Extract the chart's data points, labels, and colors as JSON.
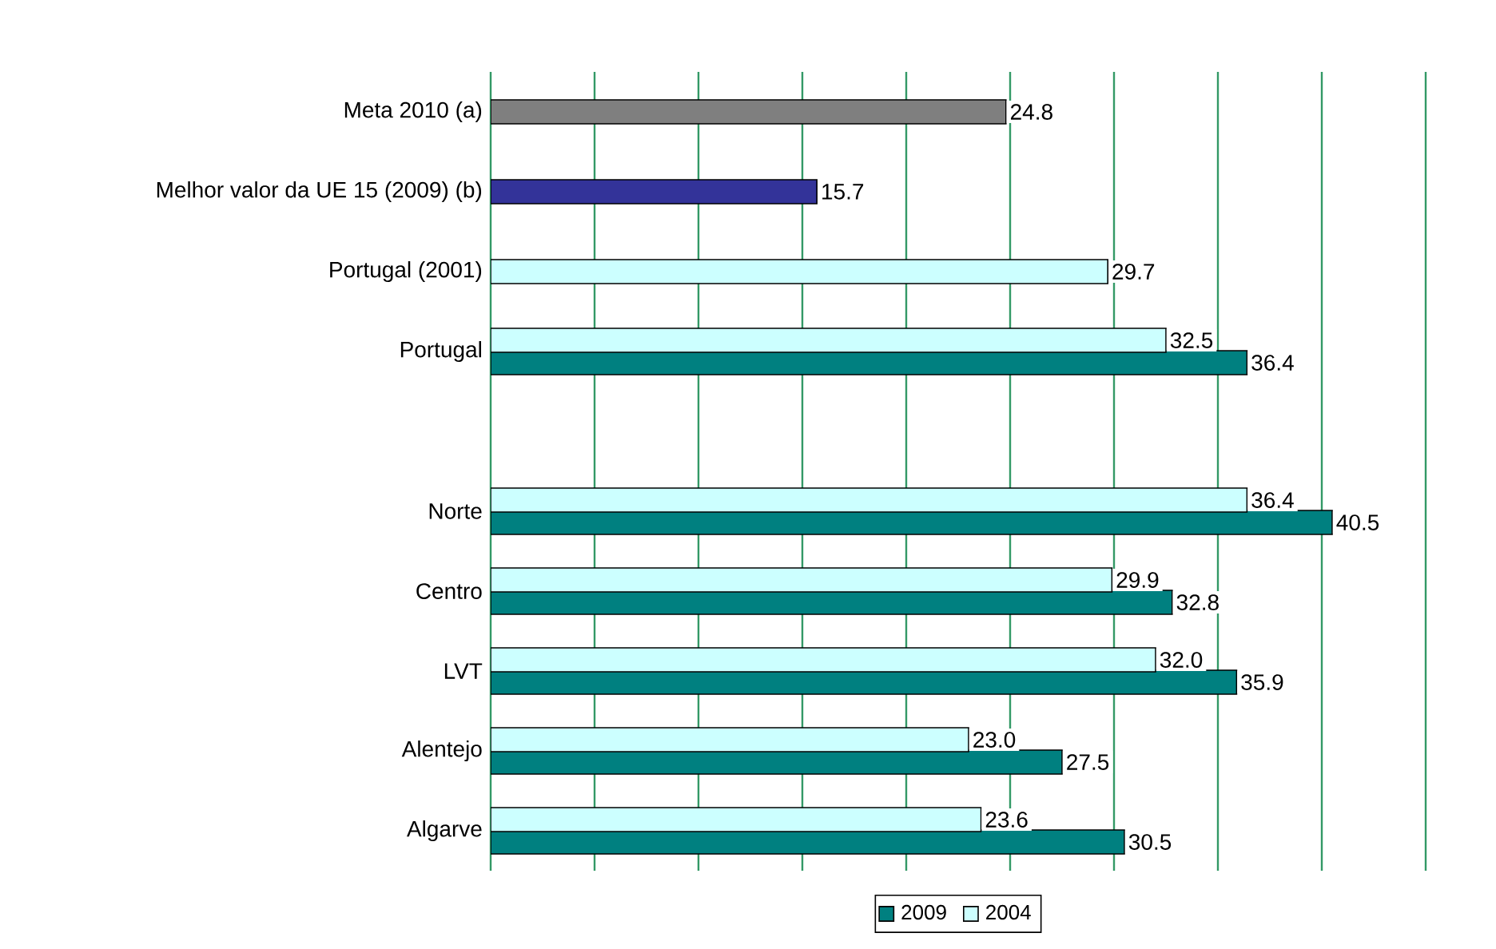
{
  "chart_data": {
    "type": "bar",
    "orientation": "horizontal",
    "categories": [
      "Meta 2010 (a)",
      "Melhor valor da UE 15 (2009) (b)",
      "Portugal (2001)",
      "Portugal",
      null,
      "Norte",
      "Centro",
      "LVT",
      "Alentejo",
      "Algarve"
    ],
    "series": [
      {
        "colors": [
          "#7f7f7f",
          "#333399",
          "#ccffff",
          null,
          null,
          null,
          null,
          null,
          null,
          null
        ],
        "values": [
          24.8,
          15.7,
          29.7,
          null,
          null,
          null,
          null,
          null,
          null,
          null
        ],
        "value_labels": [
          "24.8",
          "15.7",
          "29.7",
          null,
          null,
          null,
          null,
          null,
          null,
          null
        ]
      },
      {
        "name": "2009",
        "color": "#008080",
        "values": [
          null,
          null,
          null,
          36.4,
          null,
          40.5,
          32.8,
          35.9,
          27.5,
          30.5
        ],
        "value_labels": [
          null,
          null,
          null,
          "36.4",
          null,
          "40.5",
          "32.8",
          "35.9",
          "27.5",
          "30.5"
        ]
      },
      {
        "name": "2004",
        "color": "#ccffff",
        "values": [
          null,
          null,
          null,
          32.5,
          null,
          36.4,
          29.9,
          32.0,
          23.0,
          23.6
        ],
        "value_labels": [
          null,
          null,
          null,
          "32.5",
          null,
          "36.4",
          "29.9",
          "32.0",
          "23.0",
          "23.6"
        ]
      }
    ],
    "xlim": [
      0,
      45
    ],
    "xticks": [
      {
        "value": 0,
        "label": null
      },
      {
        "value": 5,
        "label": null
      },
      {
        "value": 10,
        "label": null
      },
      {
        "value": 15,
        "label": null
      },
      {
        "value": 20,
        "label": null
      },
      {
        "value": 25,
        "label": null
      },
      {
        "value": 30,
        "label": null
      },
      {
        "value": 35,
        "label": null
      },
      {
        "value": 40,
        "label": null
      },
      {
        "value": 45,
        "label": null
      }
    ],
    "tick_labels": "y",
    "grid": "x",
    "legend": "bottom"
  }
}
